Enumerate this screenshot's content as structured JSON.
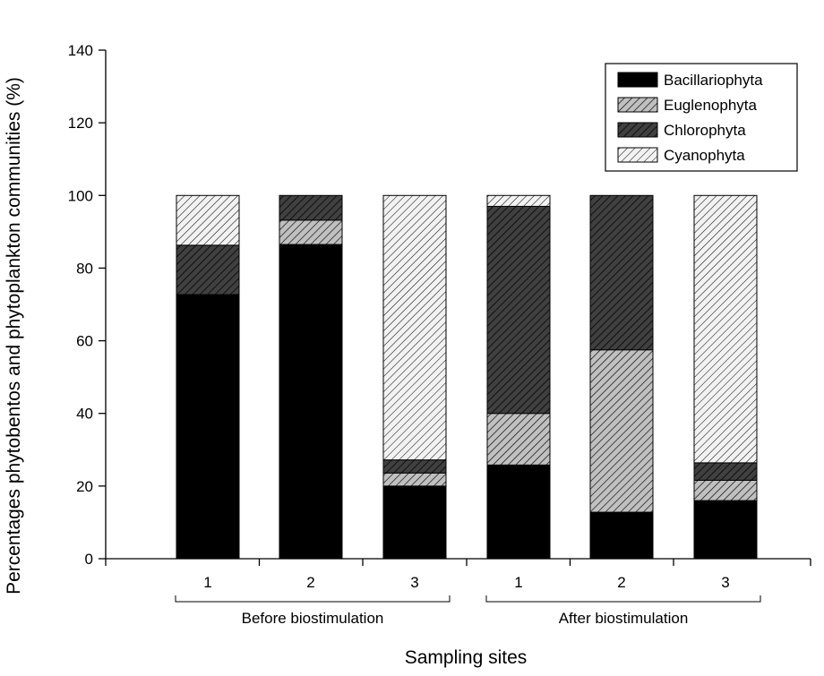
{
  "chart_data": {
    "type": "bar",
    "stacked": true,
    "xlabel": "Sampling sites",
    "ylabel": "Percentages phytobentos and phytoplankton communities (%)",
    "ylim": [
      0,
      140
    ],
    "yticks": [
      0,
      20,
      40,
      60,
      80,
      100,
      120,
      140
    ],
    "categories": [
      "1",
      "2",
      "3",
      "1",
      "2",
      "3"
    ],
    "groups": [
      {
        "label": "Before biostimulation",
        "categories": [
          0,
          1,
          2
        ]
      },
      {
        "label": "After biostimulation",
        "categories": [
          3,
          4,
          5
        ]
      }
    ],
    "grid": false,
    "legend": "top-right",
    "series": [
      {
        "name": "Bacillariophyta",
        "values": [
          72.7,
          86.5,
          20.0,
          25.8,
          12.8,
          16.0
        ],
        "color": "#000000",
        "pattern": "solid"
      },
      {
        "name": "Euglenophyta",
        "values": [
          0.0,
          6.7,
          3.6,
          14.2,
          44.7,
          5.6
        ],
        "color": "#c0c0c0",
        "pattern": "hatch"
      },
      {
        "name": "Chlorophyta",
        "values": [
          13.6,
          6.8,
          3.6,
          57.0,
          42.5,
          4.8
        ],
        "color": "#404040",
        "pattern": "hatch"
      },
      {
        "name": "Cyanophyta",
        "values": [
          13.7,
          0.0,
          72.8,
          3.0,
          0.0,
          73.6
        ],
        "color": "#f2f2f2",
        "pattern": "hatch"
      }
    ]
  }
}
